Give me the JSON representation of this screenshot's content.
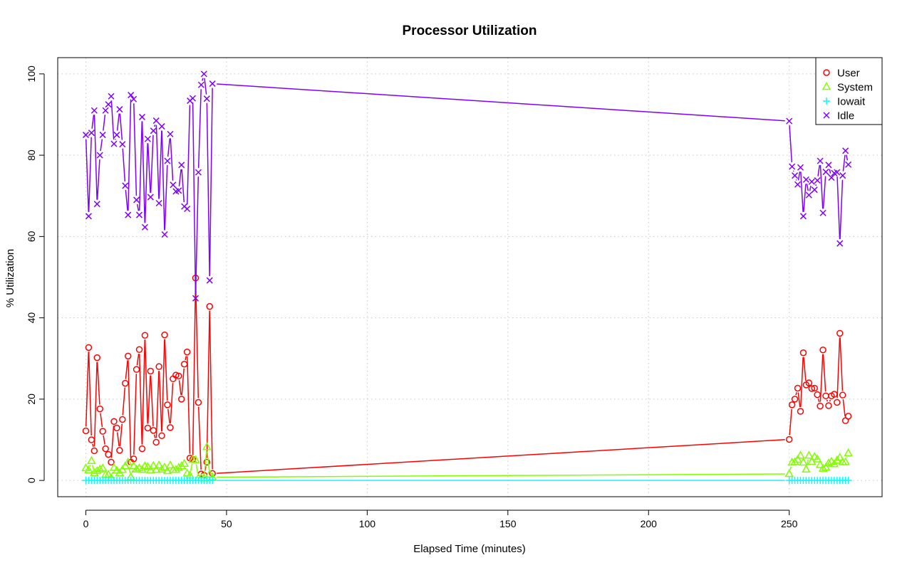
{
  "chart_data": {
    "type": "line",
    "title": "Processor Utilization",
    "xlabel": "Elapsed Time (minutes)",
    "ylabel": "% Utilization",
    "xlim": [
      -10,
      283
    ],
    "ylim": [
      -4,
      104
    ],
    "xticks": [
      0,
      50,
      100,
      150,
      200,
      250
    ],
    "yticks": [
      0,
      20,
      40,
      60,
      80,
      100
    ],
    "grid": true,
    "legend_position": "top-right",
    "x": [
      0,
      1,
      2,
      3,
      4,
      5,
      6,
      7,
      8,
      9,
      10,
      11,
      12,
      13,
      14,
      15,
      16,
      17,
      18,
      19,
      20,
      21,
      22,
      23,
      24,
      25,
      26,
      27,
      28,
      29,
      30,
      31,
      32,
      33,
      34,
      35,
      36,
      37,
      38,
      39,
      40,
      41,
      42,
      43,
      44,
      45,
      250,
      251,
      252,
      253,
      254,
      255,
      256,
      257,
      258,
      259,
      260,
      261,
      262,
      263,
      264,
      265,
      266,
      267,
      268,
      269,
      270,
      271
    ],
    "series": [
      {
        "name": "User",
        "color": "#ff0000",
        "marker": "circle",
        "values": [
          12.2,
          32.7,
          10,
          7.3,
          30.2,
          17.6,
          12.1,
          7.8,
          6.4,
          4.5,
          14.5,
          12.9,
          7.4,
          15,
          23.9,
          30.6,
          4.5,
          5.3,
          27.3,
          32.2,
          7.8,
          35.7,
          12.9,
          26.9,
          12.3,
          9.4,
          28,
          11,
          35.8,
          18.6,
          13,
          25,
          25.9,
          25.7,
          20,
          28.6,
          31.6,
          5.5,
          5.2,
          49.8,
          19.2,
          1.6,
          1.3,
          4.5,
          42.8,
          1.7,
          10.1,
          18.6,
          20,
          22.7,
          17,
          31.4,
          23.5,
          24,
          22.6,
          22.7,
          21.1,
          18.3,
          32.1,
          20.8,
          18.4,
          20.8,
          21.2,
          19.2,
          36.2,
          21,
          14.7,
          15.8
        ]
      },
      {
        "name": "System",
        "color": "#80ff00",
        "marker": "triangle",
        "values": [
          3,
          2.5,
          4.8,
          1.8,
          2.3,
          2.7,
          3,
          1.4,
          1.4,
          0.6,
          3.1,
          2.4,
          1.8,
          2.6,
          3.5,
          4.4,
          0.8,
          3.5,
          2.7,
          3,
          2.6,
          3.5,
          3.3,
          2.5,
          3.6,
          2.6,
          3.7,
          2.7,
          3.2,
          2.3,
          3.7,
          2.6,
          2.6,
          3.1,
          3.5,
          4.1,
          1.7,
          1.2,
          5.1,
          5,
          0.6,
          0.6,
          0.5,
          8.2,
          1.5,
          0.8,
          1.6,
          4.4,
          4.5,
          5.1,
          6.1,
          4.4,
          2.7,
          6.1,
          4.6,
          5.8,
          5.2,
          3.8,
          2.9,
          3.2,
          4.2,
          4.6,
          4,
          4.9,
          5.6,
          4.5,
          4.5,
          6.7
        ]
      },
      {
        "name": "Iowait",
        "color": "#00ffff",
        "marker": "plus",
        "values": [
          0,
          0,
          0,
          0,
          0,
          0,
          0,
          0,
          0,
          0,
          0,
          0,
          0,
          0,
          0,
          0,
          0,
          0,
          0,
          0,
          0,
          0,
          0,
          0,
          0,
          0,
          0,
          0,
          0,
          0,
          0,
          0,
          0,
          0,
          0,
          0,
          0,
          0,
          0,
          0,
          0,
          0,
          0,
          0,
          0,
          0,
          0,
          0,
          0,
          0,
          0,
          0,
          0,
          0,
          0,
          0,
          0,
          0,
          0,
          0,
          0,
          0,
          0,
          0,
          0,
          0,
          0,
          0
        ]
      },
      {
        "name": "Idle",
        "color": "#8000ff",
        "marker": "x",
        "values": [
          85,
          65,
          85.5,
          91,
          68,
          80,
          85,
          91,
          92.5,
          94.5,
          82.8,
          85,
          91.3,
          82.7,
          72.5,
          65.3,
          94.8,
          93.8,
          69,
          65.3,
          89.4,
          62.3,
          84,
          69.7,
          86,
          88.5,
          68.2,
          87.1,
          60.5,
          78.6,
          85.2,
          72.7,
          71.1,
          71.3,
          77.6,
          67.4,
          66.8,
          93.4,
          94,
          44.8,
          75.8,
          97.3,
          100,
          93.9,
          49.2,
          97.6,
          88.4,
          77.2,
          75,
          72.8,
          77,
          65,
          74,
          70.2,
          73.5,
          71.5,
          73.8,
          78.6,
          65.8,
          75.9,
          77.6,
          74.5,
          75.6,
          75.8,
          58.3,
          75,
          81.1,
          77.7
        ]
      }
    ]
  }
}
